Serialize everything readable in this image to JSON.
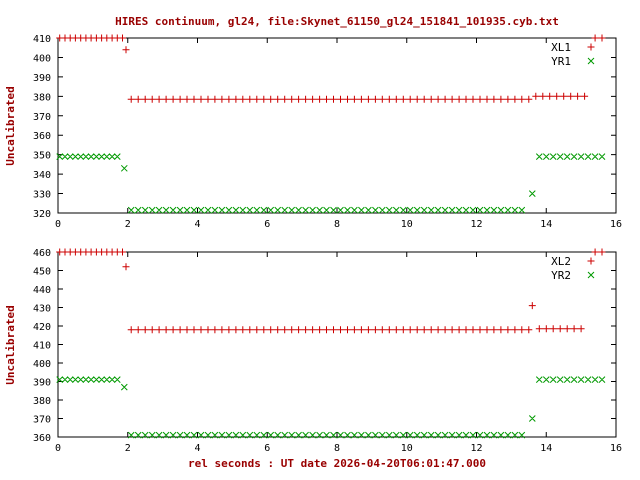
{
  "colors": {
    "background": "#ffffff",
    "border": "#000000",
    "title": "#990000",
    "axis_label": "#990000",
    "tick_label": "#000000",
    "series_red": "#cc0000",
    "series_green": "#009900"
  },
  "segments_format": "[x_start, x_end, x_step, y] — evenly spaced scatter markers at constant y",
  "chart_data": [
    {
      "type": "scatter",
      "panel": "top",
      "title": "HIRES continuum, gl24, file:Skynet_61150_gl24_151841_101935.cyb.txt",
      "ylabel": "Uncalibrated",
      "xlim": [
        0,
        16
      ],
      "ylim": [
        320,
        410
      ],
      "xticks": [
        0,
        2,
        4,
        6,
        8,
        10,
        12,
        14,
        16
      ],
      "yticks": [
        320,
        330,
        340,
        350,
        360,
        370,
        380,
        390,
        400,
        410
      ],
      "grid": false,
      "legend_position": "top-right",
      "series": [
        {
          "name": "XL1",
          "color": "#cc0000",
          "marker": "plus",
          "segments": [
            [
              0.05,
              1.85,
              0.15,
              410
            ],
            [
              2.1,
              13.5,
              0.2,
              378.5
            ],
            [
              13.7,
              15.1,
              0.2,
              380
            ]
          ],
          "extra_points": [
            [
              1.95,
              404
            ],
            [
              15.4,
              410
            ],
            [
              15.6,
              410
            ]
          ]
        },
        {
          "name": "YR1",
          "color": "#009900",
          "marker": "cross",
          "segments": [
            [
              0.05,
              1.7,
              0.15,
              349
            ],
            [
              2.1,
              13.4,
              0.2,
              321.5
            ],
            [
              13.8,
              15.6,
              0.2,
              349
            ]
          ],
          "extra_points": [
            [
              1.9,
              343
            ],
            [
              13.6,
              330
            ]
          ]
        }
      ]
    },
    {
      "type": "scatter",
      "panel": "bottom",
      "xlabel": "rel seconds : UT date 2026-04-20T06:01:47.000",
      "ylabel": "Uncalibrated",
      "xlim": [
        0,
        16
      ],
      "ylim": [
        360,
        460
      ],
      "xticks": [
        0,
        2,
        4,
        6,
        8,
        10,
        12,
        14,
        16
      ],
      "yticks": [
        360,
        370,
        380,
        390,
        400,
        410,
        420,
        430,
        440,
        450,
        460
      ],
      "grid": false,
      "legend_position": "top-right",
      "series": [
        {
          "name": "XL2",
          "color": "#cc0000",
          "marker": "plus",
          "segments": [
            [
              0.05,
              1.85,
              0.15,
              460
            ],
            [
              2.1,
              13.5,
              0.2,
              418
            ],
            [
              13.8,
              15.0,
              0.2,
              418.5
            ]
          ],
          "extra_points": [
            [
              1.95,
              452
            ],
            [
              13.6,
              431
            ],
            [
              15.4,
              460
            ],
            [
              15.6,
              460
            ]
          ]
        },
        {
          "name": "YR2",
          "color": "#009900",
          "marker": "cross",
          "segments": [
            [
              0.05,
              1.7,
              0.15,
              391
            ],
            [
              2.1,
              13.4,
              0.2,
              361
            ],
            [
              13.8,
              15.6,
              0.2,
              391
            ]
          ],
          "extra_points": [
            [
              1.9,
              387
            ],
            [
              13.6,
              370
            ]
          ]
        }
      ]
    }
  ]
}
